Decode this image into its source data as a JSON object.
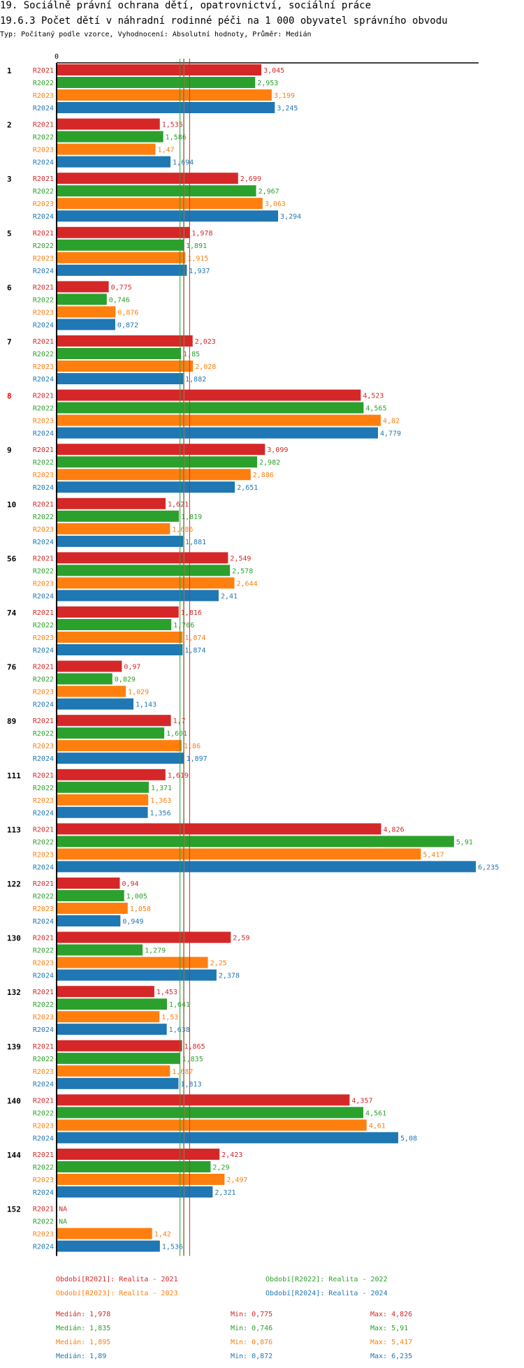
{
  "header": {
    "title": "19. Sociálně právní ochrana dětí, opatrovnictví, sociální práce",
    "subtitle": "19.6.3 Počet dětí v náhradní rodinné péči na 1 000 obyvatel správního obvodu",
    "info": "Typ: Počítaný podle vzorce, Vyhodnocení: Absolutní hodnoty, Průměr: Medián"
  },
  "chart_data": {
    "type": "bar",
    "orientation": "horizontal",
    "title": "19.6.3 Počet dětí v náhradní rodinné péči na 1 000 obyvatel správního obvodu",
    "xlabel": "",
    "ylabel": "",
    "x_tick_labels": [
      "0"
    ],
    "xlim": [
      0,
      6.235
    ],
    "grid": false,
    "categories": [
      "1",
      "2",
      "3",
      "5",
      "6",
      "7",
      "8",
      "9",
      "10",
      "56",
      "74",
      "76",
      "89",
      "111",
      "113",
      "122",
      "130",
      "132",
      "139",
      "140",
      "144",
      "152"
    ],
    "highlighted_category": "8",
    "series": [
      {
        "name": "R2021",
        "color": "#d62728",
        "values": [
          3.045,
          1.535,
          2.699,
          1.978,
          0.775,
          2.023,
          4.523,
          3.099,
          1.621,
          2.549,
          1.816,
          0.97,
          1.7,
          1.619,
          4.826,
          0.94,
          2.59,
          1.453,
          1.865,
          4.357,
          2.423,
          null
        ],
        "labels": [
          "3,045",
          "1,535",
          "2,699",
          "1,978",
          "0,775",
          "2,023",
          "4,523",
          "3,099",
          "1,621",
          "2,549",
          "1,816",
          "0,97",
          "1,7",
          "1,619",
          "4,826",
          "0,94",
          "2,59",
          "1,453",
          "1,865",
          "4,357",
          "2,423",
          "NA"
        ]
      },
      {
        "name": "R2022",
        "color": "#2ca02c",
        "values": [
          2.953,
          1.586,
          2.967,
          1.891,
          0.746,
          1.85,
          4.565,
          2.982,
          1.819,
          2.578,
          1.706,
          0.829,
          1.601,
          1.371,
          5.91,
          1.005,
          1.279,
          1.641,
          1.835,
          4.561,
          2.29,
          null
        ],
        "labels": [
          "2,953",
          "1,586",
          "2,967",
          "1,891",
          "0,746",
          "1,85",
          "4,565",
          "2,982",
          "1,819",
          "2,578",
          "1,706",
          "0,829",
          "1,601",
          "1,371",
          "5,91",
          "1,005",
          "1,279",
          "1,641",
          "1,835",
          "4,561",
          "2,29",
          "NA"
        ]
      },
      {
        "name": "R2023",
        "color": "#ff7f0e",
        "values": [
          3.199,
          1.47,
          3.063,
          1.915,
          0.876,
          2.028,
          4.82,
          2.886,
          1.686,
          2.644,
          1.874,
          1.029,
          1.86,
          1.363,
          5.417,
          1.058,
          2.25,
          1.53,
          1.687,
          4.61,
          2.497,
          1.42
        ],
        "labels": [
          "3,199",
          "1,47",
          "3,063",
          "1,915",
          "0,876",
          "2,028",
          "4,82",
          "2,886",
          "1,686",
          "2,644",
          "1,874",
          "1,029",
          "1,86",
          "1,363",
          "5,417",
          "1,058",
          "2,25",
          "1,53",
          "1,687",
          "4,61",
          "2,497",
          "1,42"
        ]
      },
      {
        "name": "R2024",
        "color": "#1f77b4",
        "values": [
          3.245,
          1.694,
          3.294,
          1.937,
          0.872,
          1.882,
          4.779,
          2.651,
          1.881,
          2.41,
          1.874,
          1.143,
          1.897,
          1.356,
          6.235,
          0.949,
          2.378,
          1.638,
          1.813,
          5.08,
          2.321,
          1.536
        ],
        "labels": [
          "3,245",
          "1,694",
          "3,294",
          "1,937",
          "0,872",
          "1,882",
          "4,779",
          "2,651",
          "1,881",
          "2,41",
          "1,874",
          "1,143",
          "1,897",
          "1,356",
          "6,235",
          "0,949",
          "2,378",
          "1,638",
          "1,813",
          "5,08",
          "2,321",
          "1,536"
        ]
      }
    ],
    "median_lines": [
      {
        "series": "R2021",
        "value": 1.978
      },
      {
        "series": "R2022",
        "value": 1.835
      },
      {
        "series": "R2023",
        "value": 1.895
      },
      {
        "series": "R2024",
        "value": 1.89
      }
    ],
    "legend": [
      {
        "series": "R2021",
        "text": "Období[R2021]: Realita - 2021"
      },
      {
        "series": "R2022",
        "text": "Období[R2022]: Realita - 2022"
      },
      {
        "series": "R2023",
        "text": "Období[R2023]: Realita - 2023"
      },
      {
        "series": "R2024",
        "text": "Období[R2024]: Realita - 2024"
      }
    ],
    "legend_position": "bottom",
    "stats": [
      {
        "series": "R2021",
        "median": "Medián: 1,978",
        "min": "Min: 0,775",
        "max": "Max: 4,826"
      },
      {
        "series": "R2022",
        "median": "Medián: 1,835",
        "min": "Min: 0,746",
        "max": "Max: 5,91"
      },
      {
        "series": "R2023",
        "median": "Medián: 1,895",
        "min": "Min: 0,876",
        "max": "Max: 5,417"
      },
      {
        "series": "R2024",
        "median": "Medián: 1,89",
        "min": "Min: 0,872",
        "max": "Max: 6,235"
      }
    ]
  }
}
